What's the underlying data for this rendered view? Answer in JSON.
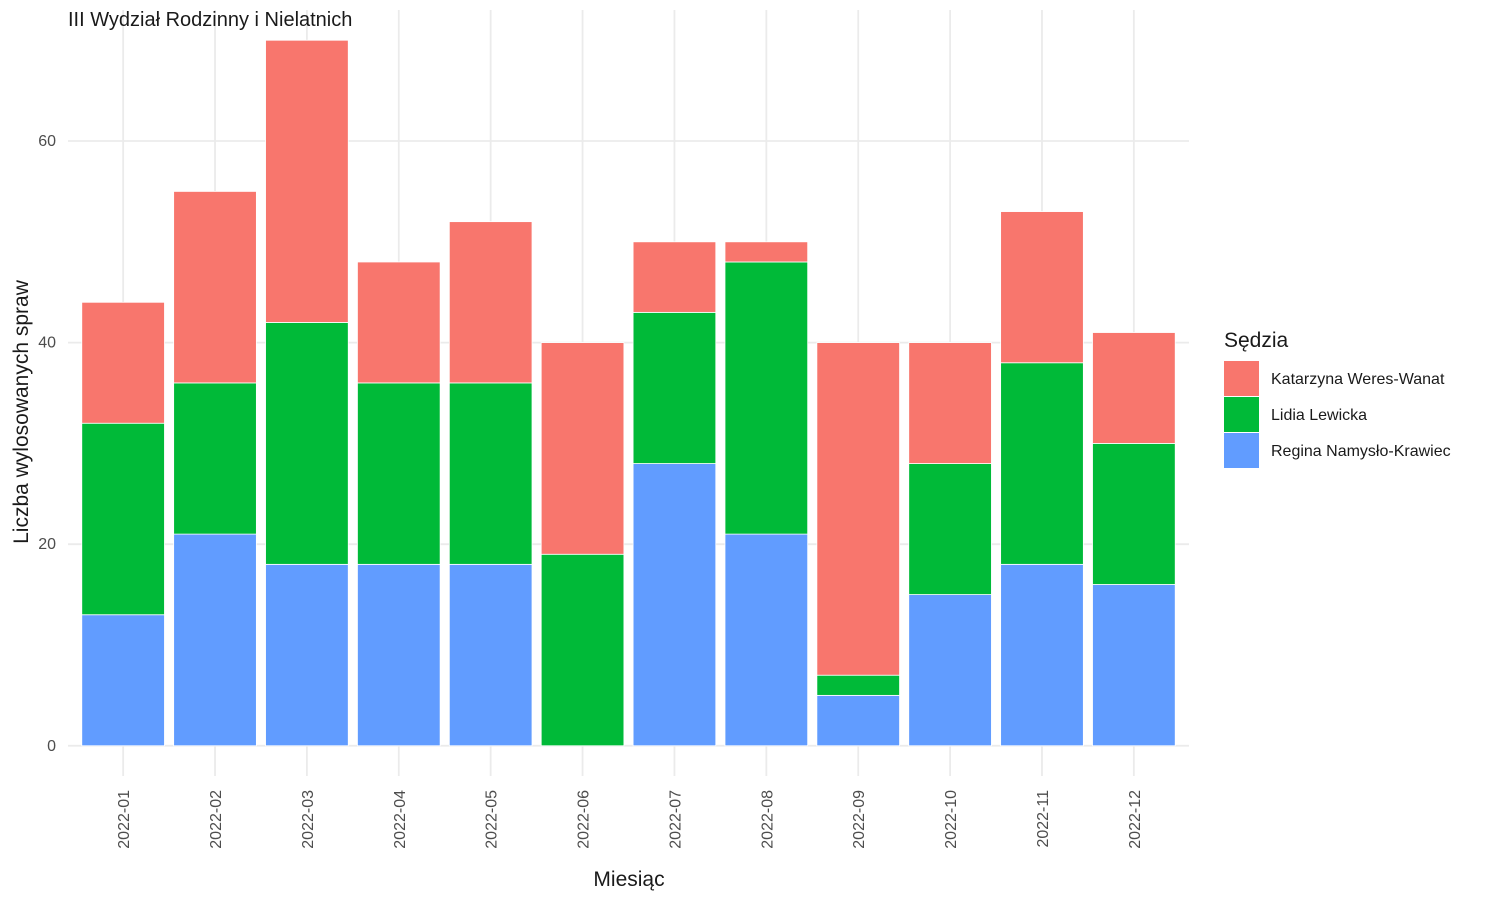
{
  "chart_data": {
    "type": "bar",
    "stacked": true,
    "title": "III Wydział Rodzinny i Nielatnich",
    "xlabel": "Miesiąc",
    "ylabel": "Liczba wylosowanych spraw",
    "categories": [
      "2022-01",
      "2022-02",
      "2022-03",
      "2022-04",
      "2022-05",
      "2022-06",
      "2022-07",
      "2022-08",
      "2022-09",
      "2022-10",
      "2022-11",
      "2022-12"
    ],
    "series": [
      {
        "name": "Regina Namysło-Krawiec",
        "color": "#619CFF",
        "values": [
          13,
          21,
          18,
          18,
          18,
          0,
          28,
          21,
          5,
          15,
          18,
          16
        ]
      },
      {
        "name": "Lidia Lewicka",
        "color": "#00BA38",
        "values": [
          19,
          15,
          24,
          18,
          18,
          19,
          15,
          27,
          2,
          13,
          20,
          14
        ]
      },
      {
        "name": "Katarzyna Weres-Wanat",
        "color": "#F8766D",
        "values": [
          12,
          19,
          28,
          12,
          16,
          21,
          7,
          2,
          33,
          12,
          15,
          11
        ]
      }
    ],
    "ylim": [
      -3,
      73
    ],
    "yticks": [
      0,
      20,
      40,
      60
    ],
    "grid": true,
    "legend": {
      "title": "Sędzia",
      "position": "right",
      "entries": [
        "Katarzyna Weres-Wanat",
        "Lidia Lewicka",
        "Regina Namysło-Krawiec"
      ]
    }
  }
}
